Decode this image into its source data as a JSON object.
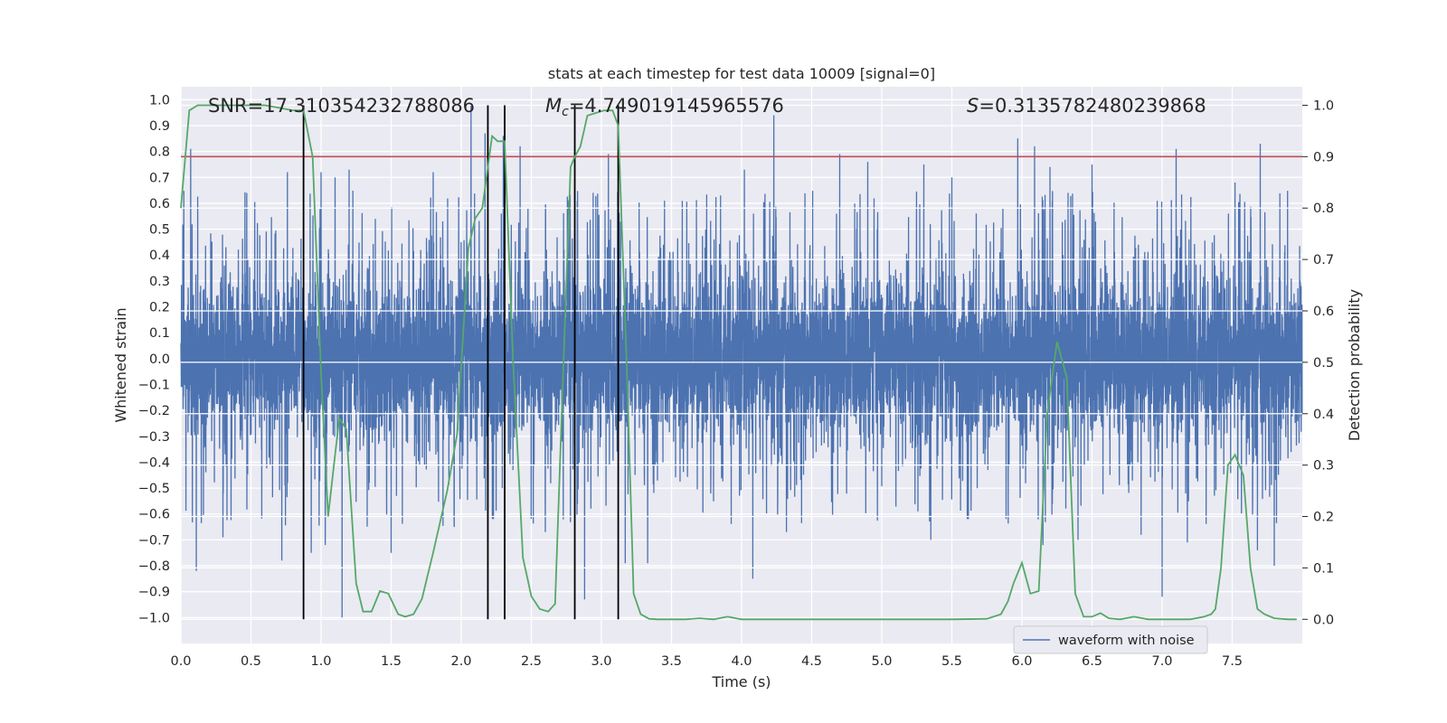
{
  "chart_data": {
    "type": "line",
    "title": "stats at each timestep for test data 10009 [signal=0]",
    "xlabel": "Time (s)",
    "ylabel_left": "Whitened strain",
    "ylabel_right": "Detection probability",
    "xlim": [
      0.0,
      8.0
    ],
    "ylim_left": [
      -1.1,
      1.05
    ],
    "ylim_right": [
      -0.047,
      1.036
    ],
    "x_ticks": [
      "0.0",
      "0.5",
      "1.0",
      "1.5",
      "2.0",
      "2.5",
      "3.0",
      "3.5",
      "4.0",
      "4.5",
      "5.0",
      "5.5",
      "6.0",
      "6.5",
      "7.0",
      "7.5"
    ],
    "y_left_ticks": [
      "1.0",
      "0.9",
      "0.8",
      "0.7",
      "0.6",
      "0.5",
      "0.4",
      "0.3",
      "0.2",
      "0.1",
      "0.0",
      "−0.1",
      "−0.2",
      "−0.3",
      "−0.4",
      "−0.5",
      "−0.6",
      "−0.7",
      "−0.8",
      "−0.9",
      "−1.0"
    ],
    "y_right_ticks": [
      "1.0",
      "0.9",
      "0.8",
      "0.7",
      "0.6",
      "0.5",
      "0.4",
      "0.3",
      "0.2",
      "0.1",
      "0.0"
    ],
    "annotations": {
      "snr": "SNR=17.310354232788086",
      "mc_symbol": "M",
      "mc_sub": "c",
      "mc_value": "=4.749019145965576",
      "s_symbol": "S",
      "s_value": "=0.3135782480239868"
    },
    "legend": {
      "label": "waveform with noise",
      "position": "lower right"
    },
    "threshold_probability": 0.9,
    "vertical_markers_time": [
      0.875,
      2.19,
      2.31,
      2.81,
      3.12
    ],
    "series": [
      {
        "name": "waveform with noise",
        "axis": "left",
        "color": "#4c72b0",
        "envelope_peaks_time": [
          0.07,
          0.47,
          0.76,
          1.0,
          1.1,
          1.2,
          1.5,
          1.8,
          2.07,
          2.17,
          2.3,
          2.42,
          3.05,
          3.45,
          3.85,
          4.02,
          4.23,
          4.7,
          4.9,
          5.3,
          5.5,
          5.97,
          6.09,
          6.2,
          6.5,
          7.0,
          7.1,
          7.52,
          7.7
        ],
        "envelope_peaks_value": [
          0.81,
          0.64,
          0.72,
          0.72,
          0.7,
          0.73,
          0.62,
          0.72,
          0.98,
          0.87,
          0.86,
          0.82,
          0.79,
          0.61,
          0.63,
          0.73,
          0.94,
          0.79,
          0.76,
          0.75,
          0.7,
          0.85,
          0.82,
          0.74,
          0.75,
          0.73,
          0.81,
          0.68,
          0.83
        ],
        "envelope_troughs_time": [
          0.11,
          0.3,
          0.72,
          0.93,
          1.03,
          1.15,
          1.5,
          1.95,
          2.6,
          2.88,
          3.17,
          3.33,
          4.08,
          4.32,
          5.35,
          6.15,
          6.4,
          6.85,
          7.0,
          7.18,
          7.68,
          7.8
        ],
        "envelope_troughs_value": [
          -0.82,
          -0.69,
          -0.78,
          -0.75,
          -0.72,
          -1.0,
          -0.75,
          -0.65,
          -0.67,
          -0.93,
          -0.79,
          -0.79,
          -0.85,
          -0.67,
          -0.7,
          -0.72,
          -0.7,
          -0.68,
          -0.92,
          -0.71,
          -0.74,
          -0.8
        ]
      },
      {
        "name": "detection probability",
        "axis": "right",
        "color": "#55a868",
        "x": [
          0.0,
          0.06,
          0.12,
          0.2,
          0.3,
          0.4,
          0.5,
          0.6,
          0.7,
          0.8,
          0.875,
          0.94,
          1.0,
          1.05,
          1.1,
          1.13,
          1.18,
          1.25,
          1.3,
          1.36,
          1.42,
          1.48,
          1.55,
          1.6,
          1.66,
          1.72,
          1.8,
          1.9,
          1.97,
          2.05,
          2.1,
          2.15,
          2.22,
          2.26,
          2.31,
          2.37,
          2.44,
          2.5,
          2.56,
          2.62,
          2.67,
          2.73,
          2.78,
          2.81,
          2.85,
          2.9,
          2.96,
          3.02,
          3.08,
          3.12,
          3.18,
          3.23,
          3.28,
          3.34,
          3.4,
          3.5,
          3.6,
          3.7,
          3.8,
          3.9,
          4.0,
          4.3,
          4.6,
          4.9,
          5.2,
          5.5,
          5.75,
          5.85,
          5.9,
          5.94,
          6.0,
          6.06,
          6.12,
          6.18,
          6.25,
          6.32,
          6.38,
          6.44,
          6.5,
          6.56,
          6.62,
          6.7,
          6.8,
          6.9,
          7.0,
          7.1,
          7.2,
          7.3,
          7.35,
          7.38,
          7.42,
          7.47,
          7.52,
          7.58,
          7.63,
          7.68,
          7.73,
          7.8,
          7.9,
          7.96
        ],
        "y": [
          0.8,
          0.99,
          1.0,
          1.0,
          1.0,
          1.0,
          1.0,
          1.0,
          0.995,
          0.99,
          0.99,
          0.9,
          0.48,
          0.2,
          0.32,
          0.39,
          0.37,
          0.07,
          0.015,
          0.015,
          0.055,
          0.05,
          0.01,
          0.005,
          0.01,
          0.04,
          0.13,
          0.25,
          0.36,
          0.72,
          0.78,
          0.8,
          0.94,
          0.93,
          0.93,
          0.5,
          0.12,
          0.045,
          0.02,
          0.015,
          0.03,
          0.5,
          0.88,
          0.9,
          0.92,
          0.98,
          0.985,
          0.99,
          0.99,
          0.96,
          0.5,
          0.05,
          0.01,
          0.001,
          0.0,
          0.0,
          0.0,
          0.002,
          0.0,
          0.005,
          0.0,
          0.0,
          0.0,
          0.0,
          0.0,
          0.0,
          0.001,
          0.01,
          0.035,
          0.07,
          0.11,
          0.05,
          0.055,
          0.4,
          0.54,
          0.47,
          0.05,
          0.005,
          0.005,
          0.012,
          0.002,
          0.0,
          0.005,
          0.0,
          0.0,
          0.0,
          0.0,
          0.005,
          0.01,
          0.02,
          0.1,
          0.3,
          0.32,
          0.28,
          0.1,
          0.02,
          0.01,
          0.002,
          0.0,
          0.0
        ]
      }
    ]
  }
}
